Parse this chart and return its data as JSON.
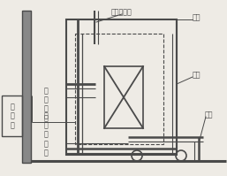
{
  "bg_color": "#eeebe5",
  "lc": "#4a4a4a",
  "fs": 5.8,
  "labels": {
    "lu_zhao": "炉罩",
    "gong_jian": "工件",
    "tui_che": "推车",
    "sheng_zuo": "升\n座\n机\n构",
    "lu_tang": "炉膛热电偶",
    "gong_jian_tc": "工\n件\n热\n电\n偶",
    "kong_zhi": "控\n制\n柜"
  }
}
